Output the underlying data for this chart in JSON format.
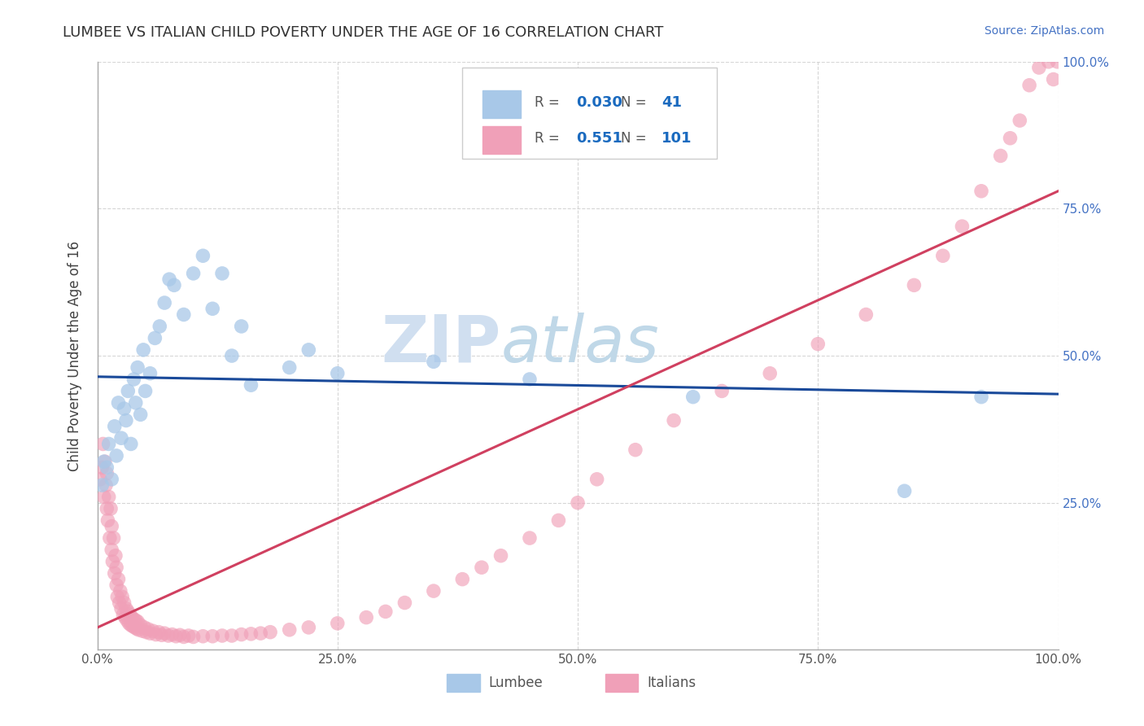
{
  "title": "LUMBEE VS ITALIAN CHILD POVERTY UNDER THE AGE OF 16 CORRELATION CHART",
  "source_text": "Source: ZipAtlas.com",
  "ylabel": "Child Poverty Under the Age of 16",
  "xlim": [
    0,
    1
  ],
  "ylim": [
    0,
    1
  ],
  "xtick_labels": [
    "0.0%",
    "25.0%",
    "50.0%",
    "75.0%",
    "100.0%"
  ],
  "xtick_positions": [
    0,
    0.25,
    0.5,
    0.75,
    1.0
  ],
  "ytick_labels": [
    "25.0%",
    "50.0%",
    "75.0%",
    "100.0%"
  ],
  "ytick_positions": [
    0.25,
    0.5,
    0.75,
    1.0
  ],
  "lumbee_R": "0.030",
  "lumbee_N": "41",
  "italian_R": "0.551",
  "italian_N": "101",
  "lumbee_color": "#a8c8e8",
  "italian_color": "#f0a0b8",
  "lumbee_line_color": "#1a4a9a",
  "italian_line_color": "#d04060",
  "legend_lumbee": "Lumbee",
  "legend_italians": "Italians",
  "watermark_zip": "ZIP",
  "watermark_atlas": "atlas",
  "watermark_color_zip": "#d0dff0",
  "watermark_color_atlas": "#c0d8e8",
  "background_color": "#ffffff",
  "grid_color": "#cccccc",
  "lumbee_x": [
    0.005,
    0.007,
    0.01,
    0.012,
    0.015,
    0.018,
    0.02,
    0.022,
    0.025,
    0.028,
    0.03,
    0.032,
    0.035,
    0.038,
    0.04,
    0.042,
    0.045,
    0.048,
    0.05,
    0.055,
    0.06,
    0.065,
    0.07,
    0.075,
    0.08,
    0.09,
    0.1,
    0.11,
    0.12,
    0.13,
    0.14,
    0.15,
    0.16,
    0.2,
    0.22,
    0.25,
    0.35,
    0.45,
    0.62,
    0.84,
    0.92
  ],
  "lumbee_y": [
    0.28,
    0.32,
    0.31,
    0.35,
    0.29,
    0.38,
    0.33,
    0.42,
    0.36,
    0.41,
    0.39,
    0.44,
    0.35,
    0.46,
    0.42,
    0.48,
    0.4,
    0.51,
    0.44,
    0.47,
    0.53,
    0.55,
    0.59,
    0.63,
    0.62,
    0.57,
    0.64,
    0.67,
    0.58,
    0.64,
    0.5,
    0.55,
    0.45,
    0.48,
    0.51,
    0.47,
    0.49,
    0.46,
    0.43,
    0.27,
    0.43
  ],
  "italian_x": [
    0.003,
    0.005,
    0.006,
    0.007,
    0.008,
    0.009,
    0.01,
    0.01,
    0.011,
    0.012,
    0.013,
    0.014,
    0.015,
    0.015,
    0.016,
    0.017,
    0.018,
    0.019,
    0.02,
    0.02,
    0.021,
    0.022,
    0.023,
    0.024,
    0.025,
    0.026,
    0.027,
    0.028,
    0.029,
    0.03,
    0.031,
    0.032,
    0.033,
    0.034,
    0.035,
    0.036,
    0.037,
    0.038,
    0.039,
    0.04,
    0.041,
    0.042,
    0.043,
    0.045,
    0.047,
    0.049,
    0.051,
    0.053,
    0.055,
    0.058,
    0.061,
    0.064,
    0.067,
    0.07,
    0.074,
    0.078,
    0.082,
    0.086,
    0.09,
    0.095,
    0.1,
    0.11,
    0.12,
    0.13,
    0.14,
    0.15,
    0.16,
    0.17,
    0.18,
    0.2,
    0.22,
    0.25,
    0.28,
    0.3,
    0.32,
    0.35,
    0.38,
    0.4,
    0.42,
    0.45,
    0.48,
    0.5,
    0.52,
    0.56,
    0.6,
    0.65,
    0.7,
    0.75,
    0.8,
    0.85,
    0.88,
    0.9,
    0.92,
    0.94,
    0.95,
    0.96,
    0.97,
    0.98,
    0.99,
    0.995,
    0.999
  ],
  "italian_y": [
    0.29,
    0.31,
    0.35,
    0.26,
    0.32,
    0.28,
    0.24,
    0.3,
    0.22,
    0.26,
    0.19,
    0.24,
    0.17,
    0.21,
    0.15,
    0.19,
    0.13,
    0.16,
    0.11,
    0.14,
    0.09,
    0.12,
    0.08,
    0.1,
    0.07,
    0.09,
    0.06,
    0.08,
    0.055,
    0.07,
    0.05,
    0.065,
    0.045,
    0.06,
    0.042,
    0.055,
    0.04,
    0.052,
    0.038,
    0.05,
    0.036,
    0.048,
    0.034,
    0.042,
    0.032,
    0.038,
    0.03,
    0.035,
    0.028,
    0.032,
    0.026,
    0.03,
    0.025,
    0.028,
    0.024,
    0.026,
    0.023,
    0.025,
    0.022,
    0.024,
    0.022,
    0.023,
    0.023,
    0.024,
    0.024,
    0.026,
    0.027,
    0.028,
    0.03,
    0.034,
    0.038,
    0.045,
    0.055,
    0.065,
    0.08,
    0.1,
    0.12,
    0.14,
    0.16,
    0.19,
    0.22,
    0.25,
    0.29,
    0.34,
    0.39,
    0.44,
    0.47,
    0.52,
    0.57,
    0.62,
    0.67,
    0.72,
    0.78,
    0.84,
    0.87,
    0.9,
    0.96,
    0.99,
    1.0,
    0.97,
    1.0
  ]
}
